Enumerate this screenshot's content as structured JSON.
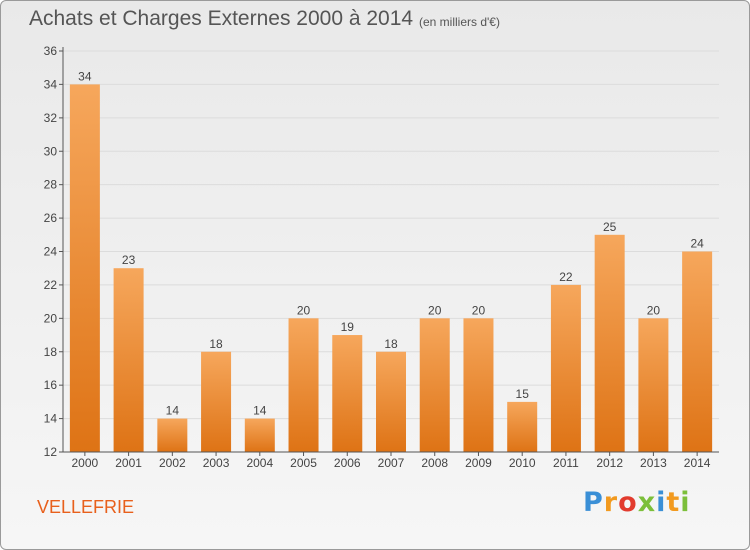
{
  "header": {
    "title": "Achats et Charges Externes 2000 à 2014",
    "subtitle": "(en milliers d'€)"
  },
  "footer": {
    "commune": "VELLEFRIE",
    "logo_text": "Proxiti"
  },
  "colors": {
    "bar_light": "#f6a75c",
    "bar_dark": "#de7315",
    "axis": "#555555",
    "gridline": "#dcdcdc",
    "commune_label": "#e8601c"
  },
  "chart_data": {
    "type": "bar",
    "categories": [
      "2000",
      "2001",
      "2002",
      "2003",
      "2004",
      "2005",
      "2006",
      "2007",
      "2008",
      "2009",
      "2010",
      "2011",
      "2012",
      "2013",
      "2014"
    ],
    "values": [
      34,
      23,
      14,
      18,
      14,
      20,
      19,
      18,
      20,
      20,
      15,
      22,
      25,
      20,
      24
    ],
    "title": "Achats et Charges Externes 2000 à 2014",
    "subtitle": "(en milliers d'€)",
    "xlabel": "",
    "ylabel": "",
    "ylim": [
      12,
      36
    ],
    "yticks": [
      12,
      14,
      16,
      18,
      20,
      22,
      24,
      26,
      28,
      30,
      32,
      34,
      36
    ],
    "grid": true,
    "legend": "none"
  }
}
